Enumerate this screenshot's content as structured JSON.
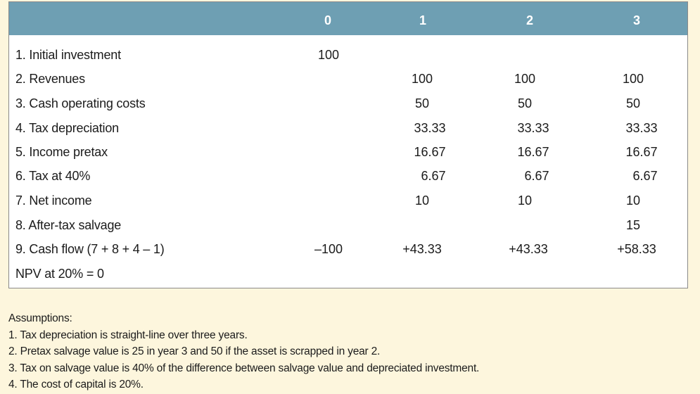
{
  "table": {
    "columns": [
      "0",
      "1",
      "2",
      "3"
    ],
    "rows": [
      {
        "label": "1. Initial investment",
        "values": [
          "100",
          "",
          "",
          ""
        ]
      },
      {
        "label": "2. Revenues",
        "values": [
          "",
          "100",
          "100",
          "100"
        ]
      },
      {
        "label": "3. Cash operating costs",
        "values": [
          "",
          "50",
          "50",
          "50"
        ]
      },
      {
        "label": "4. Tax depreciation",
        "values": [
          "",
          "33.33",
          "33.33",
          "33.33"
        ]
      },
      {
        "label": "5. Income pretax",
        "values": [
          "",
          "16.67",
          "16.67",
          "16.67"
        ]
      },
      {
        "label": "6. Tax at 40%",
        "values": [
          "",
          "6.67",
          "6.67",
          "6.67"
        ]
      },
      {
        "label": "7. Net income",
        "values": [
          "",
          "10",
          "10",
          "10"
        ]
      },
      {
        "label": "8. After-tax salvage",
        "values": [
          "",
          "",
          "",
          "15"
        ]
      },
      {
        "label": "9. Cash flow (7 + 8 + 4 – 1)",
        "values": [
          "–100",
          "+43.33",
          "+43.33",
          "+58.33"
        ]
      },
      {
        "label": "NPV at 20% = 0",
        "values": [
          "",
          "",
          "",
          ""
        ]
      }
    ]
  },
  "assumptions": {
    "heading": "Assumptions:",
    "items": [
      "1.  Tax depreciation is straight-line over three years.",
      "2.  Pretax salvage value is 25 in year 3 and 50 if the asset is scrapped in year 2.",
      "3.  Tax on salvage value is 40% of the difference between salvage value and depreciated investment.",
      "4.  The cost of capital is 20%."
    ]
  },
  "colors": {
    "header": "#6e9fb3",
    "background": "#fdf6dd",
    "table_bg": "#ffffff"
  }
}
